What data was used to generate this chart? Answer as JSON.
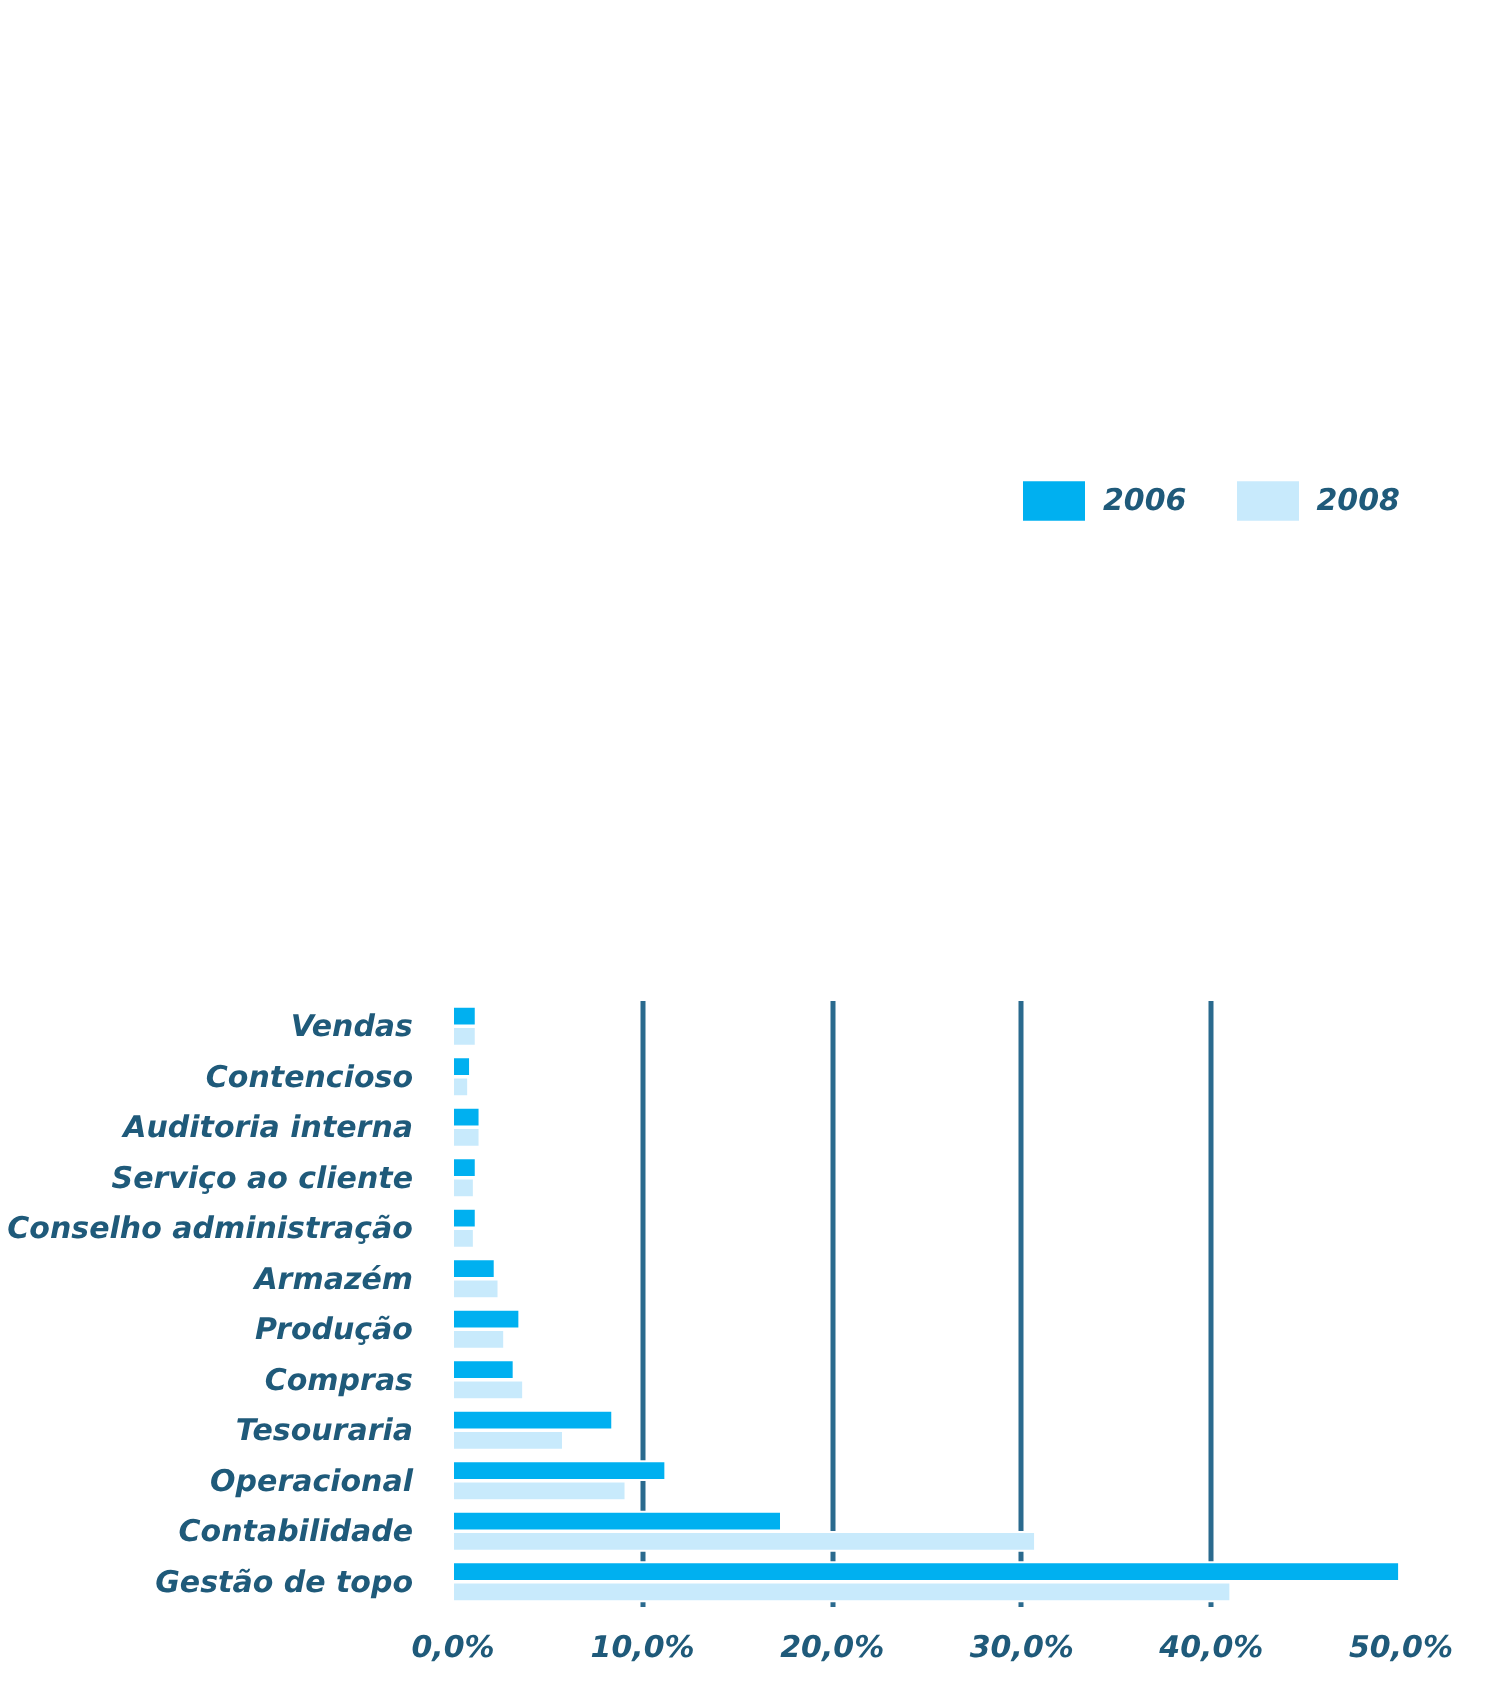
{
  "chart_data": {
    "type": "bar",
    "orientation": "horizontal",
    "categories": [
      "Vendas",
      "Contencioso",
      "Auditoria interna",
      "Serviço ao cliente",
      "Conselho administração",
      "Armazém",
      "Produção",
      "Compras",
      "Tesouraria",
      "Operacional",
      "Contabilidade",
      "Gestão de topo"
    ],
    "series": [
      {
        "name": "2006",
        "color": "#00b0f0",
        "values": [
          1.2,
          0.9,
          1.4,
          1.2,
          1.2,
          2.2,
          3.5,
          3.2,
          8.4,
          11.2,
          17.3,
          49.9
        ]
      },
      {
        "name": "2008",
        "color": "#c8eafc",
        "values": [
          1.2,
          0.8,
          1.4,
          1.1,
          1.1,
          2.4,
          2.7,
          3.7,
          5.8,
          9.1,
          30.7,
          41.0
        ]
      }
    ],
    "xlim": [
      0,
      50
    ],
    "xticks": [
      {
        "value": 0,
        "label": "0,0%"
      },
      {
        "value": 10,
        "label": "10,0%"
      },
      {
        "value": 20,
        "label": "20,0%"
      },
      {
        "value": 30,
        "label": "30,0%"
      },
      {
        "value": 40,
        "label": "40,0%"
      },
      {
        "value": 50,
        "label": "50,0%"
      }
    ],
    "grid": "x",
    "legend": "top right"
  }
}
